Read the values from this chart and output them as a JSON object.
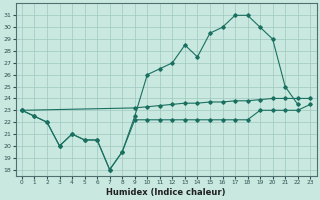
{
  "bg_color": "#c8e8e0",
  "grid_color": "#a0c8c0",
  "line_color": "#1a7060",
  "xlabel": "Humidex (Indice chaleur)",
  "x_ticks": [
    0,
    1,
    2,
    3,
    4,
    5,
    6,
    7,
    8,
    9,
    10,
    11,
    12,
    13,
    14,
    15,
    16,
    17,
    18,
    19,
    20,
    21,
    22,
    23
  ],
  "y_ticks": [
    18,
    19,
    20,
    21,
    22,
    23,
    24,
    25,
    26,
    27,
    28,
    29,
    30,
    31
  ],
  "ylim": [
    17.5,
    32.0
  ],
  "xlim": [
    -0.5,
    23.5
  ],
  "line1_x": [
    0,
    1,
    2,
    3,
    4,
    5,
    6,
    7,
    8,
    9,
    10,
    11,
    12,
    13,
    14,
    15,
    16,
    17,
    18,
    19,
    20,
    21,
    22,
    23
  ],
  "line1_y": [
    23.0,
    22.5,
    22.0,
    20.0,
    21.0,
    20.5,
    20.5,
    18.0,
    19.5,
    22.2,
    22.2,
    22.2,
    22.2,
    22.2,
    22.2,
    22.2,
    22.2,
    22.2,
    22.2,
    23.0,
    23.0,
    23.0,
    23.0,
    23.5
  ],
  "line2_x": [
    0,
    1,
    2,
    3,
    4,
    5,
    6,
    7,
    8,
    9,
    10,
    11,
    12,
    13,
    14,
    15,
    16,
    17,
    18,
    19,
    20,
    21,
    22
  ],
  "line2_y": [
    23.0,
    22.5,
    22.0,
    20.0,
    21.0,
    20.5,
    20.5,
    18.0,
    19.5,
    22.5,
    26.0,
    26.5,
    27.0,
    28.5,
    27.5,
    29.5,
    30.0,
    31.0,
    31.0,
    30.0,
    29.0,
    25.0,
    23.5
  ],
  "line3_x": [
    0,
    9,
    10,
    11,
    12,
    13,
    14,
    15,
    16,
    17,
    18,
    19,
    20,
    21,
    22,
    23
  ],
  "line3_y": [
    23.0,
    23.2,
    23.3,
    23.4,
    23.5,
    23.6,
    23.6,
    23.7,
    23.7,
    23.8,
    23.8,
    23.9,
    24.0,
    24.0,
    24.0,
    24.0
  ]
}
